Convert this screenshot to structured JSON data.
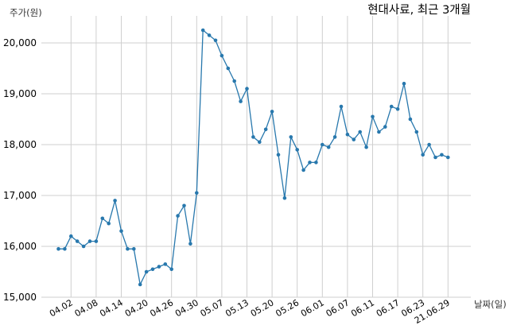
{
  "chart_data": {
    "type": "line",
    "title": "현대사료, 최근 3개월",
    "ylabel": "주가(원)",
    "xlabel": "날짜(일)",
    "ylim": [
      15000,
      20500
    ],
    "yticks": [
      15000,
      16000,
      17000,
      18000,
      19000,
      20000
    ],
    "ytick_labels": [
      "15,000",
      "16,000",
      "17,000",
      "18,000",
      "19,000",
      "20,000"
    ],
    "xtick_labels": [
      "04.02",
      "04.08",
      "04.14",
      "04.20",
      "04.26",
      "04.30",
      "05.07",
      "05.13",
      "05.20",
      "05.26",
      "06.01",
      "06.07",
      "06.11",
      "06.17",
      "06.23",
      "21.06.29"
    ],
    "xtick_indices": [
      2,
      6,
      10,
      14,
      18,
      22,
      26,
      30,
      34,
      38,
      42,
      46,
      50,
      54,
      58,
      62
    ],
    "grid": true,
    "line_color": "#2878ad",
    "series": [
      {
        "values": [
          15950,
          15950,
          16200,
          16100,
          16000,
          16100,
          16100,
          16550,
          16450,
          16900,
          16300,
          15950,
          15950,
          15250,
          15500,
          15550,
          15600,
          15650,
          15550,
          16600,
          16800,
          16050,
          17050,
          20250,
          20150,
          20050,
          19750,
          19500,
          19250,
          18850,
          19100,
          18150,
          18050,
          18300,
          18650,
          17800,
          16950,
          18150,
          17900,
          17500,
          17650,
          17650,
          18000,
          17950,
          18150,
          18750,
          18200,
          18100,
          18250,
          17950,
          18550,
          18250,
          18350,
          18750,
          18700,
          19200,
          18500,
          18250,
          17800,
          18000,
          17750,
          17800,
          17750
        ]
      }
    ]
  }
}
